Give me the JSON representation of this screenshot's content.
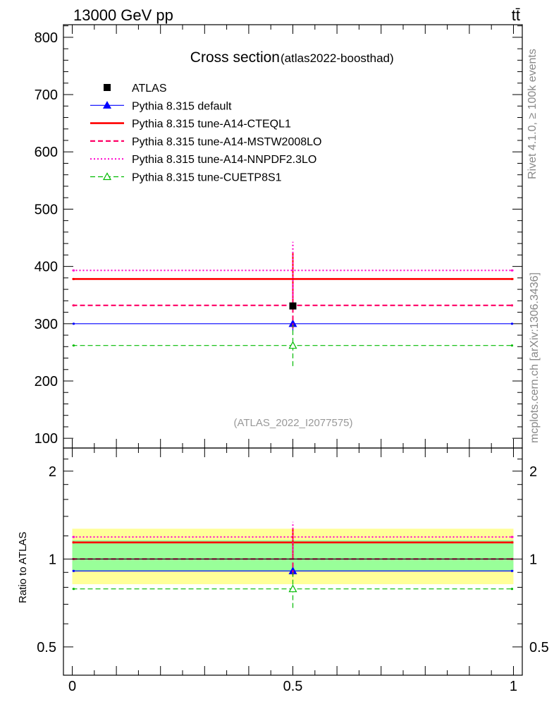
{
  "header": {
    "energy_label": "13000 GeV pp",
    "process_label": "tt̄"
  },
  "side_labels": {
    "rivet": "Rivet 4.1.0, ≥ 100k events",
    "mcplots": "mcplots.cern.ch [arXiv:1306.3436]"
  },
  "chart_data": [
    {
      "type": "line",
      "panel": "main",
      "title": "Cross section",
      "subtitle": "(atlas2022-boosthad)",
      "watermark": "(ATLAS_2022_I2077575)",
      "xlabel": "",
      "ylabel": "",
      "xlim": [
        -0.02,
        1.02
      ],
      "ylim": [
        83,
        822
      ],
      "yticks": [
        100,
        200,
        300,
        400,
        500,
        600,
        700,
        800
      ],
      "legend_position": "top-left",
      "data": {
        "name": "ATLAS",
        "x": 0.5,
        "y": 331,
        "err": 0,
        "color": "#000000"
      },
      "series": [
        {
          "name": "Pythia 8.315 default",
          "color": "#0000ff",
          "dash": "solid",
          "width": 1.2,
          "marker": "triangle-filled",
          "x": [
            0,
            1
          ],
          "y": 300,
          "err": [
            13,
            13
          ]
        },
        {
          "name": "Pythia 8.315 tune-A14-CTEQL1",
          "color": "#ff0000",
          "dash": "solid",
          "width": 2.6,
          "marker": "none",
          "x": [
            0,
            1
          ],
          "y": 378,
          "err": [
            45,
            45
          ]
        },
        {
          "name": "Pythia 8.315 tune-A14-MSTW2008LO",
          "color": "#ff0066",
          "dash": "dashed",
          "width": 2.2,
          "marker": "none",
          "x": [
            0,
            1
          ],
          "y": 332,
          "err": [
            40,
            40
          ]
        },
        {
          "name": "Pythia 8.315 tune-A14-NNPDF2.3LO",
          "color": "#ff00cc",
          "dash": "dotted",
          "width": 2.0,
          "marker": "none",
          "x": [
            0,
            1
          ],
          "y": 393,
          "err": [
            50,
            50
          ]
        },
        {
          "name": "Pythia 8.315 tune-CUETP8S1",
          "color": "#00bb00",
          "dash": "dashed",
          "width": 1.2,
          "marker": "triangle-open",
          "x": [
            0,
            1
          ],
          "y": 262,
          "err": [
            36,
            36
          ]
        }
      ]
    },
    {
      "type": "line",
      "panel": "ratio",
      "ylabel": "Ratio to ATLAS",
      "xlim": [
        -0.02,
        1.02
      ],
      "ylim": [
        0.4,
        2.4
      ],
      "yticks": [
        0.5,
        1,
        2
      ],
      "xticks": [
        0,
        0.5,
        1
      ],
      "bands": {
        "yellow": {
          "low": 0.82,
          "high": 1.27,
          "color": "#ffff99"
        },
        "green": {
          "low": 0.91,
          "high": 1.16,
          "color": "#99ff99"
        }
      },
      "reference": 1.0,
      "series": [
        {
          "name": "Pythia 8.315 default",
          "color": "#0000ff",
          "dash": "solid",
          "width": 1.2,
          "marker": "triangle-filled",
          "y": 0.91,
          "err": [
            0.04,
            0.04
          ]
        },
        {
          "name": "Pythia 8.315 tune-A14-CTEQL1",
          "color": "#ff0000",
          "dash": "solid",
          "width": 2.6,
          "marker": "none",
          "y": 1.14,
          "err": [
            0.14,
            0.14
          ]
        },
        {
          "name": "Pythia 8.315 tune-A14-MSTW2008LO",
          "color": "#ff0066",
          "dash": "dashed",
          "width": 2.2,
          "marker": "none",
          "y": 1.0,
          "err": [
            0.12,
            0.12
          ]
        },
        {
          "name": "Pythia 8.315 tune-A14-NNPDF2.3LO",
          "color": "#ff00cc",
          "dash": "dotted",
          "width": 2.0,
          "marker": "none",
          "y": 1.19,
          "err": [
            0.15,
            0.15
          ]
        },
        {
          "name": "Pythia 8.315 tune-CUETP8S1",
          "color": "#00bb00",
          "dash": "dashed",
          "width": 1.2,
          "marker": "triangle-open",
          "y": 0.79,
          "err": [
            0.11,
            0.11
          ]
        }
      ]
    }
  ]
}
